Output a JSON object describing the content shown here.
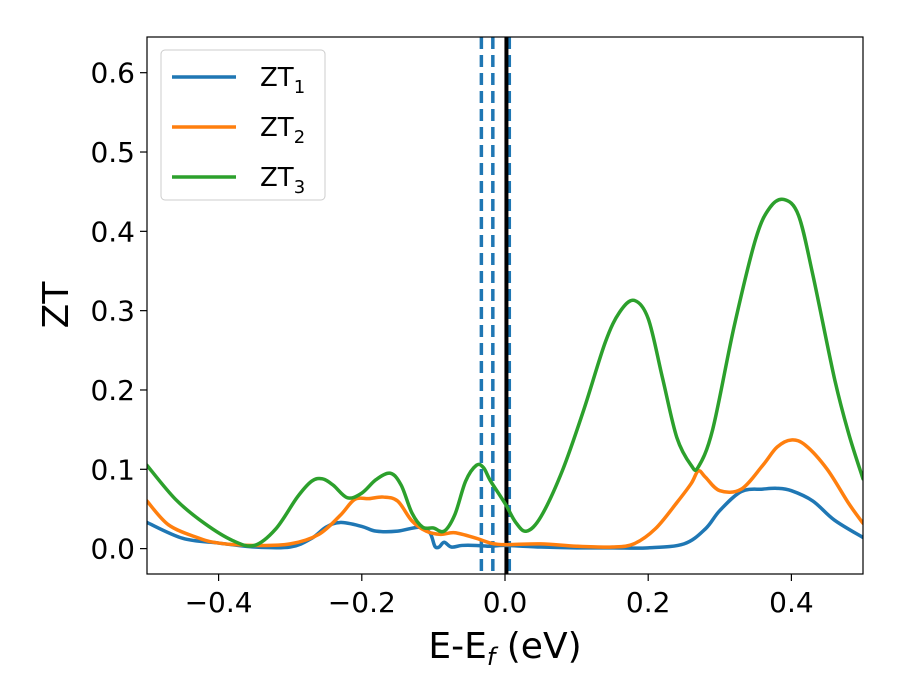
{
  "chart_data": {
    "type": "line",
    "xlabel_main": "E-E",
    "xlabel_sub": "f",
    "xlabel_unit": " (eV)",
    "ylabel": "ZT",
    "xlim": [
      -0.5,
      0.5
    ],
    "ylim": [
      -0.032,
      0.645
    ],
    "x_ticks": [
      -0.4,
      -0.2,
      0.0,
      0.2,
      0.4
    ],
    "x_tick_labels": [
      "−0.4",
      "−0.2",
      "0.0",
      "0.2",
      "0.4"
    ],
    "y_ticks": [
      0.0,
      0.1,
      0.2,
      0.3,
      0.4,
      0.5,
      0.6
    ],
    "y_tick_labels": [
      "0.0",
      "0.1",
      "0.2",
      "0.3",
      "0.4",
      "0.5",
      "0.6"
    ],
    "grid": false,
    "legend_position": "top-left",
    "vertical_lines": [
      {
        "x": -0.033,
        "style": "dashed",
        "color": "#1f77b4"
      },
      {
        "x": -0.017,
        "style": "dashed",
        "color": "#1f77b4"
      },
      {
        "x": 0.006,
        "style": "dashed",
        "color": "#1f77b4"
      },
      {
        "x": 0.002,
        "style": "solid",
        "color": "#000000"
      }
    ],
    "series": [
      {
        "name": "ZT",
        "sub": "1",
        "color": "#1f77b4",
        "x": [
          -0.5,
          -0.45,
          -0.4,
          -0.35,
          -0.3,
          -0.27,
          -0.25,
          -0.23,
          -0.2,
          -0.18,
          -0.15,
          -0.12,
          -0.105,
          -0.098,
          -0.092,
          -0.085,
          -0.075,
          -0.06,
          -0.04,
          -0.02,
          0.0,
          0.05,
          0.1,
          0.15,
          0.2,
          0.25,
          0.28,
          0.3,
          0.33,
          0.36,
          0.38,
          0.4,
          0.43,
          0.46,
          0.5
        ],
        "y": [
          0.033,
          0.013,
          0.007,
          0.002,
          0.002,
          0.013,
          0.027,
          0.033,
          0.028,
          0.022,
          0.022,
          0.027,
          0.02,
          0.003,
          0.002,
          0.008,
          0.002,
          0.004,
          0.004,
          0.003,
          0.004,
          0.002,
          0.001,
          0.001,
          0.001,
          0.006,
          0.025,
          0.048,
          0.072,
          0.075,
          0.076,
          0.073,
          0.06,
          0.036,
          0.014
        ]
      },
      {
        "name": "ZT",
        "sub": "2",
        "color": "#ff7f0e",
        "x": [
          -0.5,
          -0.47,
          -0.43,
          -0.4,
          -0.35,
          -0.3,
          -0.26,
          -0.23,
          -0.21,
          -0.19,
          -0.17,
          -0.15,
          -0.13,
          -0.11,
          -0.09,
          -0.07,
          -0.04,
          -0.02,
          0.0,
          0.05,
          0.1,
          0.15,
          0.18,
          0.21,
          0.24,
          0.26,
          0.27,
          0.28,
          0.3,
          0.33,
          0.36,
          0.38,
          0.4,
          0.42,
          0.45,
          0.48,
          0.5
        ],
        "y": [
          0.06,
          0.03,
          0.014,
          0.007,
          0.004,
          0.006,
          0.018,
          0.042,
          0.062,
          0.063,
          0.065,
          0.06,
          0.035,
          0.022,
          0.018,
          0.02,
          0.013,
          0.007,
          0.005,
          0.006,
          0.003,
          0.002,
          0.006,
          0.025,
          0.058,
          0.082,
          0.098,
          0.09,
          0.073,
          0.075,
          0.105,
          0.128,
          0.137,
          0.13,
          0.1,
          0.057,
          0.032
        ]
      },
      {
        "name": "ZT",
        "sub": "3",
        "color": "#2ca02c",
        "x": [
          -0.5,
          -0.46,
          -0.42,
          -0.38,
          -0.35,
          -0.32,
          -0.29,
          -0.27,
          -0.255,
          -0.24,
          -0.22,
          -0.2,
          -0.18,
          -0.16,
          -0.145,
          -0.13,
          -0.115,
          -0.1,
          -0.085,
          -0.07,
          -0.055,
          -0.04,
          -0.03,
          -0.02,
          0.0,
          0.015,
          0.03,
          0.05,
          0.08,
          0.11,
          0.14,
          0.16,
          0.18,
          0.2,
          0.22,
          0.24,
          0.26,
          0.27,
          0.29,
          0.32,
          0.35,
          0.37,
          0.39,
          0.41,
          0.43,
          0.46,
          0.48,
          0.5
        ],
        "y": [
          0.105,
          0.062,
          0.032,
          0.01,
          0.004,
          0.025,
          0.065,
          0.085,
          0.088,
          0.08,
          0.064,
          0.07,
          0.087,
          0.095,
          0.08,
          0.045,
          0.027,
          0.026,
          0.022,
          0.043,
          0.085,
          0.105,
          0.102,
          0.085,
          0.057,
          0.033,
          0.022,
          0.04,
          0.098,
          0.175,
          0.26,
          0.298,
          0.313,
          0.29,
          0.215,
          0.14,
          0.105,
          0.103,
          0.15,
          0.28,
          0.39,
          0.43,
          0.44,
          0.42,
          0.345,
          0.215,
          0.145,
          0.088
        ]
      }
    ]
  }
}
